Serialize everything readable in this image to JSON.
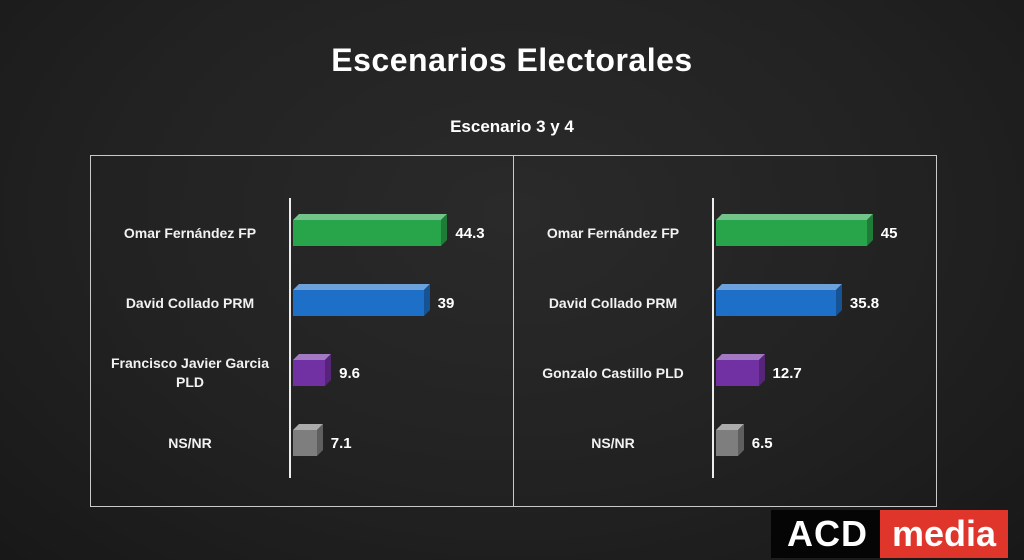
{
  "title": "Escenarios Electorales",
  "subtitle": "Escenario 3 y 4",
  "logo": {
    "acd": "ACD",
    "media": "media",
    "acd_bg": "#050505",
    "media_bg": "#e0352b"
  },
  "chart_data": [
    {
      "type": "bar",
      "orientation": "horizontal",
      "panel": "left",
      "categories": [
        "Omar Fernández FP",
        "David Collado PRM",
        "Francisco Javier Garcia PLD",
        "NS/NR"
      ],
      "values": [
        44.3,
        39,
        9.6,
        7.1
      ],
      "bar_colors": [
        "#28a44b",
        "#1d6fc7",
        "#7231a3",
        "#7e7e7e"
      ],
      "xlim": [
        0,
        50
      ],
      "legend": "none",
      "grid": false
    },
    {
      "type": "bar",
      "orientation": "horizontal",
      "panel": "right",
      "categories": [
        "Omar Fernández FP",
        "David Collado PRM",
        "Gonzalo Castillo PLD",
        "NS/NR"
      ],
      "values": [
        45,
        35.8,
        12.7,
        6.5
      ],
      "bar_colors": [
        "#28a44b",
        "#1d6fc7",
        "#7231a3",
        "#7e7e7e"
      ],
      "xlim": [
        0,
        50
      ],
      "legend": "none",
      "grid": false
    }
  ]
}
